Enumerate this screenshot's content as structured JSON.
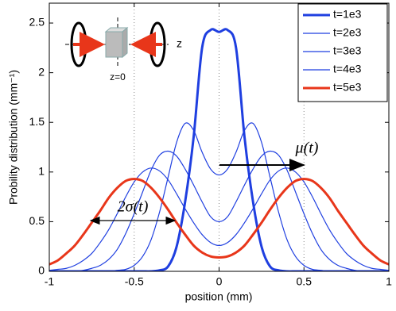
{
  "chart_data": {
    "type": "line",
    "x_label": "position (mm)",
    "y_label": "Probility distribution (mm⁻¹)",
    "x": [
      -1,
      -0.95,
      -0.9,
      -0.85,
      -0.8,
      -0.75,
      -0.7,
      -0.65,
      -0.6,
      -0.55,
      -0.5,
      -0.45,
      -0.4,
      -0.35,
      -0.3,
      -0.25,
      -0.2,
      -0.15,
      -0.1,
      -0.05,
      0,
      0.05,
      0.1,
      0.15,
      0.2,
      0.25,
      0.3,
      0.35,
      0.4,
      0.45,
      0.5,
      0.55,
      0.6,
      0.65,
      0.7,
      0.75,
      0.8,
      0.85,
      0.9,
      0.95,
      1
    ],
    "series": [
      {
        "name": "t=1e3",
        "color": "#1f3fe0",
        "width": 3,
        "values": [
          0,
          0,
          0,
          0,
          0,
          0,
          0,
          0,
          0,
          0,
          0,
          0,
          0,
          0.01,
          0.05,
          0.25,
          0.7,
          1.35,
          2.25,
          2.43,
          2.41,
          2.43,
          2.25,
          1.35,
          0.7,
          0.25,
          0.05,
          0.01,
          0,
          0,
          0,
          0,
          0,
          0,
          0,
          0,
          0,
          0,
          0,
          0,
          0
        ]
      },
      {
        "name": "t=2e3",
        "color": "#1f3fe0",
        "width": 1.2,
        "values": [
          0,
          0,
          0,
          0,
          0,
          0,
          0,
          0,
          0.01,
          0.02,
          0.06,
          0.15,
          0.32,
          0.6,
          0.95,
          1.3,
          1.49,
          1.42,
          1.2,
          1.03,
          0.97,
          1.03,
          1.2,
          1.42,
          1.49,
          1.3,
          0.95,
          0.6,
          0.32,
          0.15,
          0.06,
          0.02,
          0.01,
          0,
          0,
          0,
          0,
          0,
          0,
          0,
          0
        ]
      },
      {
        "name": "t=3e3",
        "color": "#1f3fe0",
        "width": 1.2,
        "values": [
          0,
          0,
          0,
          0,
          0.01,
          0.03,
          0.06,
          0.12,
          0.22,
          0.38,
          0.58,
          0.8,
          1.02,
          1.17,
          1.21,
          1.16,
          1.03,
          0.87,
          0.7,
          0.55,
          0.5,
          0.55,
          0.7,
          0.87,
          1.03,
          1.16,
          1.21,
          1.17,
          1.02,
          0.8,
          0.58,
          0.38,
          0.22,
          0.12,
          0.06,
          0.03,
          0.01,
          0,
          0,
          0,
          0
        ]
      },
      {
        "name": "t=4e3",
        "color": "#1f3fe0",
        "width": 1.2,
        "values": [
          0.01,
          0.02,
          0.03,
          0.06,
          0.11,
          0.18,
          0.29,
          0.42,
          0.58,
          0.75,
          0.9,
          1.0,
          1.04,
          1.01,
          0.92,
          0.78,
          0.63,
          0.49,
          0.37,
          0.29,
          0.26,
          0.29,
          0.37,
          0.49,
          0.63,
          0.78,
          0.92,
          1.01,
          1.04,
          1.0,
          0.9,
          0.75,
          0.58,
          0.42,
          0.29,
          0.18,
          0.11,
          0.06,
          0.03,
          0.02,
          0.01
        ]
      },
      {
        "name": "t=5e3",
        "color": "#e8361a",
        "width": 3,
        "values": [
          0.07,
          0.11,
          0.18,
          0.26,
          0.37,
          0.49,
          0.61,
          0.74,
          0.84,
          0.91,
          0.93,
          0.91,
          0.84,
          0.74,
          0.62,
          0.49,
          0.37,
          0.26,
          0.19,
          0.15,
          0.14,
          0.15,
          0.19,
          0.26,
          0.37,
          0.49,
          0.62,
          0.74,
          0.84,
          0.91,
          0.93,
          0.91,
          0.84,
          0.74,
          0.61,
          0.49,
          0.37,
          0.26,
          0.18,
          0.11,
          0.07
        ]
      }
    ],
    "xlim": [
      -1,
      1
    ],
    "ylim": [
      0,
      2.7
    ],
    "xticks": [
      -1,
      -0.5,
      0,
      0.5,
      1
    ],
    "yticks": [
      0,
      0.5,
      1,
      1.5,
      2,
      2.5
    ],
    "x_grid_lines": [
      -0.5,
      0,
      0.5
    ],
    "legend": "upper right",
    "annotations": {
      "sigma": "2σ(t)",
      "mu": "μ(t)",
      "z": "z",
      "z0": "z=0"
    }
  }
}
